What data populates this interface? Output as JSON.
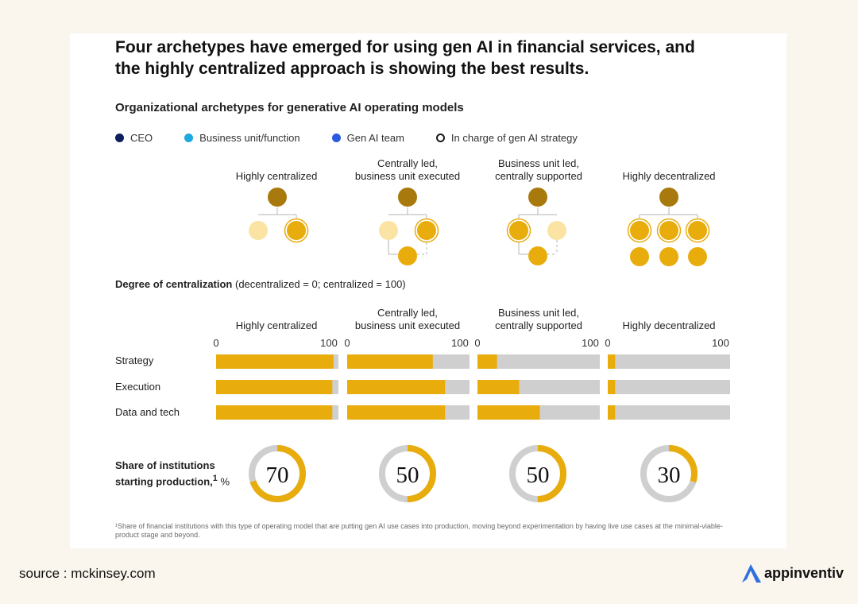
{
  "headline": "Four archetypes have emerged for using gen AI in financial services, and the highly centralized approach is showing the best results.",
  "subtitle": "Organizational archetypes for generative AI operating models",
  "legend": [
    {
      "label": "CEO",
      "color": "#0d1f5c",
      "style": "filled"
    },
    {
      "label": "Business unit/function",
      "color": "#1fa9e1",
      "style": "filled"
    },
    {
      "label": "Gen AI team",
      "color": "#2b5be0",
      "style": "filled"
    },
    {
      "label": "In charge of gen AI strategy",
      "color": "#1a1a1a",
      "style": "outline"
    }
  ],
  "archetypes": [
    {
      "line1": "",
      "line2": "Highly centralized"
    },
    {
      "line1": "Centrally led,",
      "line2": "business unit executed"
    },
    {
      "line1": "Business unit led,",
      "line2": "centrally supported"
    },
    {
      "line1": "",
      "line2": "Highly decentralized"
    }
  ],
  "degree": {
    "title": "Degree of centralization",
    "note": "(decentralized = 0; centralized = 100)"
  },
  "axis": {
    "min_label": "0",
    "max_label": "100"
  },
  "rows": [
    "Strategy",
    "Execution",
    "Data and tech"
  ],
  "share": {
    "title": "Share of institutions starting production,",
    "sup": "1",
    "unit": "%"
  },
  "footnote": "¹Share of financial institutions with this type of operating model that are putting gen AI use cases into production, moving beyond experimentation by having live use cases at the minimal-viable-product stage and beyond.",
  "source": "source : mckinsey.com",
  "brand": {
    "name": "appinventiv",
    "logo_color": "#2f6fdf"
  },
  "colors": {
    "ceo_node": "#a8790d",
    "unit_light": "#fbe3a4",
    "unit": "#e8ac0c",
    "bar_fill": "#e8ac0c",
    "bar_track": "#cfcfcf",
    "connector": "#b5b5b5"
  },
  "chart_data": [
    {
      "type": "bar",
      "orientation": "horizontal",
      "title": "Degree of centralization",
      "subtitle": "(decentralized = 0; centralized = 100)",
      "categories": [
        "Strategy",
        "Execution",
        "Data and tech"
      ],
      "xlim": [
        0,
        100
      ],
      "series": [
        {
          "name": "Highly centralized",
          "values": [
            96,
            95,
            95
          ]
        },
        {
          "name": "Centrally led, business unit executed",
          "values": [
            70,
            80,
            80
          ]
        },
        {
          "name": "Business unit led, centrally supported",
          "values": [
            16,
            34,
            51
          ]
        },
        {
          "name": "Highly decentralized",
          "values": [
            6,
            6,
            6
          ]
        }
      ]
    },
    {
      "type": "pie",
      "title": "Share of institutions starting production, %",
      "categories": [
        "Highly centralized",
        "Centrally led, business unit executed",
        "Business unit led, centrally supported",
        "Highly decentralized"
      ],
      "values": [
        70,
        50,
        50,
        30
      ]
    }
  ]
}
